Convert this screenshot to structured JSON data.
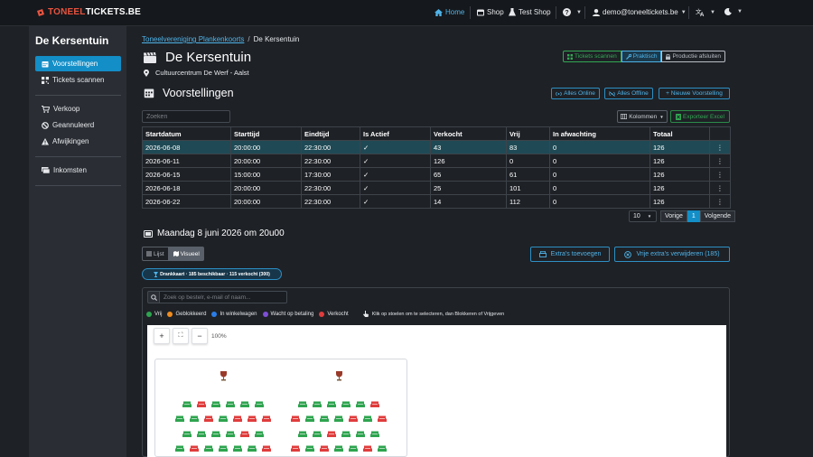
{
  "brand": {
    "part1": "TONEEL",
    "part2": "TICKETS.BE"
  },
  "topnav": {
    "home": "Home",
    "shop": "Shop",
    "test_shop": "Test Shop",
    "user": "demo@toneeltickets.be"
  },
  "sidebar": {
    "title": "De Kersentuin",
    "items": [
      {
        "label": "Voorstellingen",
        "icon": "calendar-icon"
      },
      {
        "label": "Tickets scannen",
        "icon": "qrcode-icon"
      },
      {
        "label": "Verkoop",
        "icon": "cart-icon"
      },
      {
        "label": "Geannuleerd",
        "icon": "ban-icon"
      },
      {
        "label": "Afwijkingen",
        "icon": "warning-icon"
      },
      {
        "label": "Inkomsten",
        "icon": "cash-icon"
      }
    ]
  },
  "breadcrumb": {
    "parent": "Toneelvereniging Plankenkoorts",
    "current": "De Kersentuin"
  },
  "production": {
    "title": "De Kersentuin",
    "venue": "Cultuurcentrum De Werf - Aalst"
  },
  "header_buttons": {
    "scan": "Tickets scannen",
    "practical": "Praktisch",
    "close": "Productie afsluiten"
  },
  "shows_section": {
    "title": "Voorstellingen",
    "all_online": "Alles Online",
    "all_offline": "Alles Offline",
    "new_show": "+ Nieuwe Voorstelling",
    "search_placeholder": "Zoeken",
    "columns_btn": "Kolommen",
    "export_btn": "Exporteer Excel"
  },
  "table": {
    "headers": [
      "Startdatum",
      "Starttijd",
      "Eindtijd",
      "Is Actief",
      "Verkocht",
      "Vrij",
      "In afwachting",
      "Totaal",
      ""
    ],
    "rows": [
      [
        "2026-06-08",
        "20:00:00",
        "22:30:00",
        "✓",
        "43",
        "83",
        "0",
        "126",
        "⋮"
      ],
      [
        "2026-06-11",
        "20:00:00",
        "22:30:00",
        "✓",
        "126",
        "0",
        "0",
        "126",
        "⋮"
      ],
      [
        "2026-06-15",
        "15:00:00",
        "17:30:00",
        "✓",
        "65",
        "61",
        "0",
        "126",
        "⋮"
      ],
      [
        "2026-06-18",
        "20:00:00",
        "22:30:00",
        "✓",
        "25",
        "101",
        "0",
        "126",
        "⋮"
      ],
      [
        "2026-06-22",
        "20:00:00",
        "22:30:00",
        "✓",
        "14",
        "112",
        "0",
        "126",
        "⋮"
      ]
    ]
  },
  "pager": {
    "page_size": "10",
    "prev": "Vorige",
    "current": "1",
    "next": "Volgende"
  },
  "performance": {
    "title": "Maandag 8 juni 2026 om 20u00",
    "view_list": "Lijst",
    "view_visual": "Visueel",
    "add_extras": "Extra's toevoegen",
    "remove_extras": "Vrije extra's verwijderen (185)",
    "drink_pill": "Drankkaart · 185 beschikbaar · 115 verkocht (300)"
  },
  "seatmap": {
    "search_placeholder": "Zoek op bestelr, e-mail of naam...",
    "legend": [
      {
        "label": "Vrij",
        "color": "#2ea44f"
      },
      {
        "label": "Geblokkeerd",
        "color": "#f08c1e"
      },
      {
        "label": "In winkelwagen",
        "color": "#2b7de9"
      },
      {
        "label": "Wacht op betaling",
        "color": "#7e4fd6"
      },
      {
        "label": "Verkocht",
        "color": "#e03c3c"
      }
    ],
    "hint": "Klik op stoelen om te selecteren, dan Blokkeren of Vrijgeven",
    "zoom_in": "+",
    "zoom_fit": "⛶",
    "zoom_out": "−",
    "zoom_level": "100%"
  },
  "seat_rows": [
    [
      "f",
      "s",
      "f",
      "f",
      "f",
      "f"
    ],
    [
      "f",
      "f",
      "s",
      "f",
      "s",
      "s",
      "s"
    ],
    [
      "f",
      "f",
      "f",
      "f",
      "s",
      "f"
    ],
    [
      "f",
      "s",
      "f",
      "f",
      "f",
      "f",
      "s"
    ],
    [
      "f",
      "f",
      "f",
      "f",
      "f",
      "s",
      "f",
      "f",
      "f",
      "s",
      "s",
      "f"
    ],
    [
      "s",
      "f",
      "f",
      "f",
      "s",
      "f",
      "s",
      "s",
      "f",
      "f",
      "s",
      "f",
      "s",
      "s"
    ],
    [
      "f",
      "f",
      "s",
      "f",
      "f",
      "f",
      "s",
      "f",
      "f",
      "s",
      "f",
      "f"
    ],
    [
      "s",
      "f",
      "s",
      "f",
      "f",
      "s",
      "f",
      "f",
      "s",
      "f",
      "f",
      "s",
      "s"
    ]
  ]
}
